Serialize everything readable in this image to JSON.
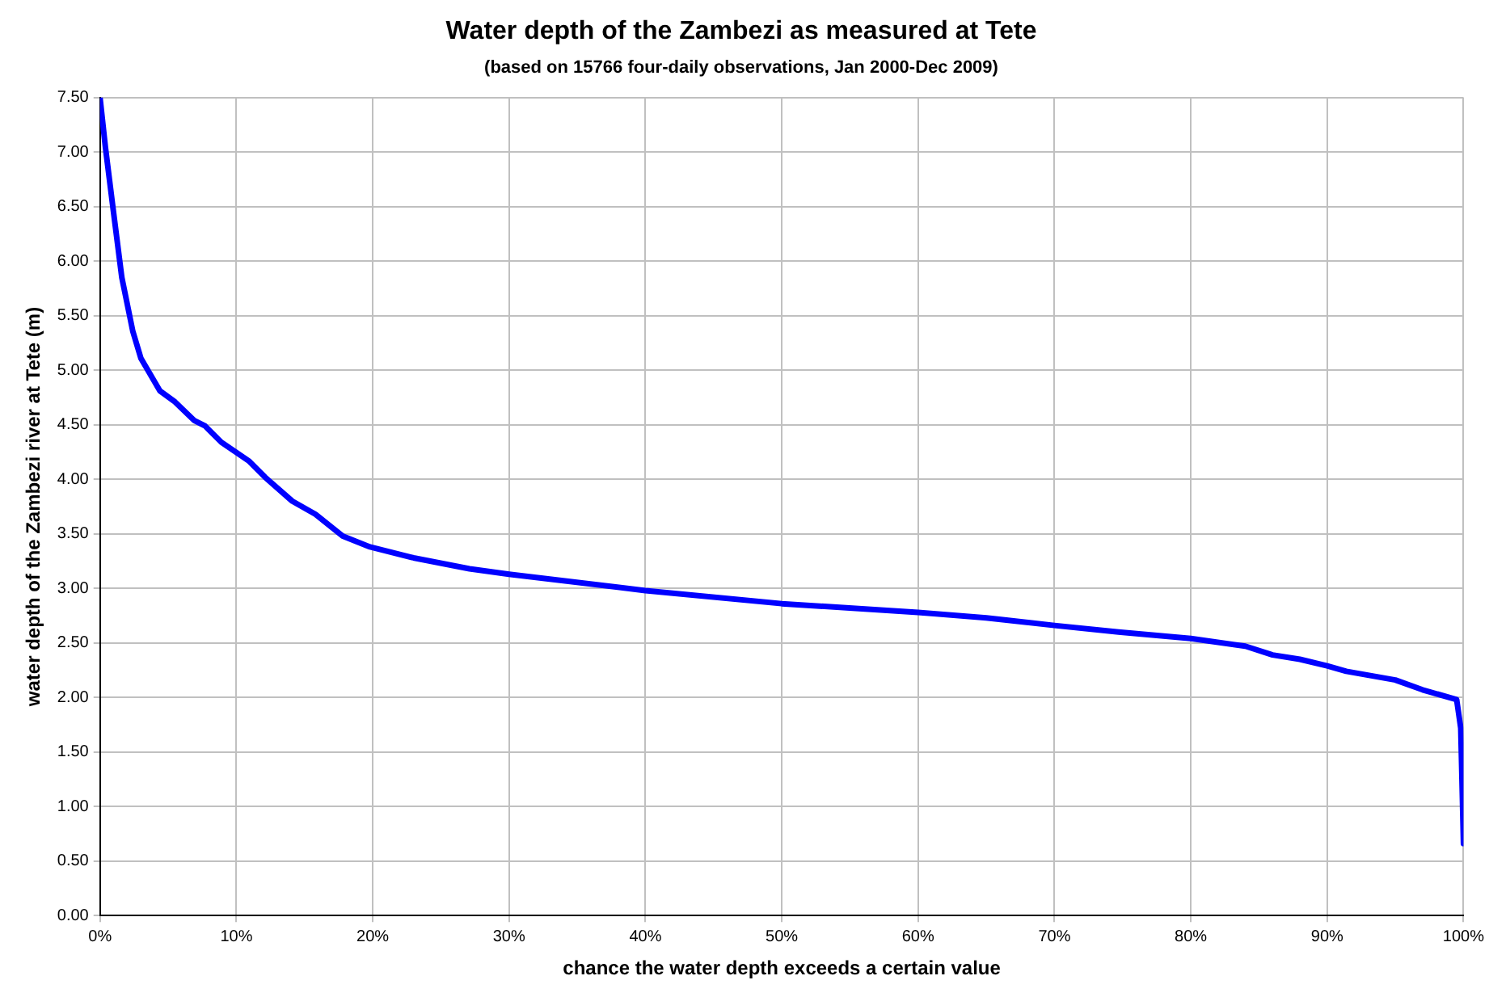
{
  "chart_data": {
    "type": "line",
    "title": "Water depth of the Zambezi as measured at Tete",
    "subtitle": "(based on 15766 four-daily observations, Jan 2000-Dec 2009)",
    "xlabel": "chance the water depth exceeds a certain value",
    "ylabel": "water depth of the Zambezi river at Tete (m)",
    "x": [
      0,
      0.4,
      1.0,
      1.6,
      2.4,
      3.0,
      4.4,
      5.5,
      6.9,
      7.7,
      8.9,
      10.9,
      12.1,
      14.1,
      15.8,
      17.8,
      19.8,
      23.0,
      27.1,
      30.0,
      40.0,
      50.0,
      60.0,
      65.0,
      70.0,
      74.7,
      80.0,
      84.0,
      86.0,
      88.0,
      90.0,
      91.4,
      95.0,
      97.0,
      99.5,
      99.8,
      100
    ],
    "series": [
      {
        "color": "#0000ff",
        "values": [
          7.5,
          7.04,
          6.44,
          5.85,
          5.36,
          5.11,
          4.81,
          4.71,
          4.54,
          4.49,
          4.34,
          4.17,
          4.02,
          3.8,
          3.68,
          3.48,
          3.38,
          3.28,
          3.18,
          3.13,
          2.98,
          2.86,
          2.78,
          2.73,
          2.66,
          2.6,
          2.54,
          2.47,
          2.39,
          2.35,
          2.29,
          2.24,
          2.16,
          2.07,
          1.98,
          1.72,
          0.66
        ]
      }
    ],
    "xlim": [
      0,
      100
    ],
    "xticks": [
      {
        "value": 0,
        "label": "0%"
      },
      {
        "value": 10,
        "label": "10%"
      },
      {
        "value": 20,
        "label": "20%"
      },
      {
        "value": 30,
        "label": "30%"
      },
      {
        "value": 40,
        "label": "40%"
      },
      {
        "value": 50,
        "label": "50%"
      },
      {
        "value": 60,
        "label": "60%"
      },
      {
        "value": 70,
        "label": "70%"
      },
      {
        "value": 80,
        "label": "80%"
      },
      {
        "value": 90,
        "label": "90%"
      },
      {
        "value": 100,
        "label": "100%"
      }
    ],
    "ylim": [
      0,
      7.5
    ],
    "yticks": [
      {
        "value": 0,
        "label": "0.00"
      },
      {
        "value": 0.5,
        "label": "0.50"
      },
      {
        "value": 1,
        "label": "1.00"
      },
      {
        "value": 1.5,
        "label": "1.50"
      },
      {
        "value": 2,
        "label": "2.00"
      },
      {
        "value": 2.5,
        "label": "2.50"
      },
      {
        "value": 3,
        "label": "3.00"
      },
      {
        "value": 3.5,
        "label": "3.50"
      },
      {
        "value": 4,
        "label": "4.00"
      },
      {
        "value": 4.5,
        "label": "4.50"
      },
      {
        "value": 5,
        "label": "5.00"
      },
      {
        "value": 5.5,
        "label": "5.50"
      },
      {
        "value": 6,
        "label": "6.00"
      },
      {
        "value": 6.5,
        "label": "6.50"
      },
      {
        "value": 7,
        "label": "7.00"
      },
      {
        "value": 7.5,
        "label": "7.50"
      }
    ],
    "grid": true,
    "legend": false,
    "marker": "none",
    "line_style": "solid"
  }
}
